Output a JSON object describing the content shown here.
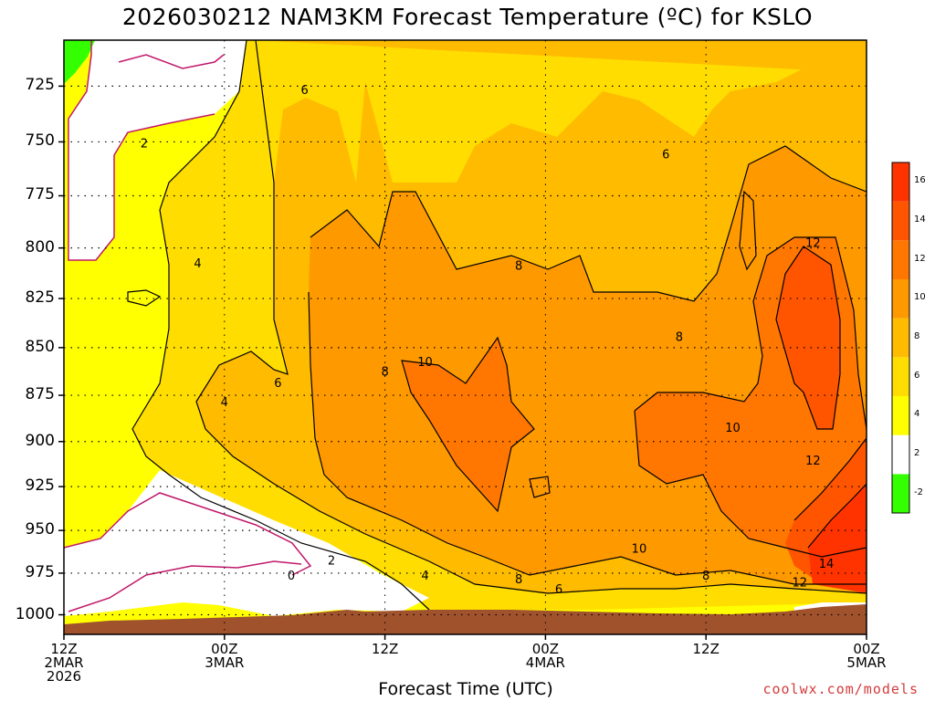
{
  "chart_data": {
    "type": "heatmap",
    "title": "2026030212 NAM3KM Forecast Temperature (ºC) for KSLO",
    "xlabel": "Forecast Time (UTC)",
    "ylabel": "",
    "y_scale": "pressure (inverted)",
    "ylim": [
      1012,
      705
    ],
    "y_ticks": [
      725,
      750,
      775,
      800,
      825,
      850,
      875,
      900,
      925,
      950,
      975,
      1000
    ],
    "x_ticks": [
      {
        "line1": "12Z",
        "line2": "2MAR",
        "line3": "2026"
      },
      {
        "line1": "00Z",
        "line2": "3MAR",
        "line3": ""
      },
      {
        "line1": "12Z",
        "line2": "",
        "line3": ""
      },
      {
        "line1": "00Z",
        "line2": "4MAR",
        "line3": ""
      },
      {
        "line1": "12Z",
        "line2": "",
        "line3": ""
      },
      {
        "line1": "00Z",
        "line2": "5MAR",
        "line3": ""
      }
    ],
    "x_range_hours": [
      0,
      60
    ],
    "grid": true,
    "colorbar": {
      "levels": [
        -2,
        2,
        4,
        6,
        8,
        10,
        12,
        14,
        16
      ],
      "colors": [
        "#33ff00",
        "#ffffff",
        "#ffff00",
        "#ffdd00",
        "#ffbb00",
        "#ff9900",
        "#ff7700",
        "#ff5500",
        "#ff3300"
      ]
    },
    "contour_labels": [
      {
        "text": "2",
        "hour": 6,
        "p": 751
      },
      {
        "text": "4",
        "hour": 10,
        "p": 808
      },
      {
        "text": "6",
        "hour": 18,
        "p": 727
      },
      {
        "text": "4",
        "hour": 12,
        "p": 879
      },
      {
        "text": "6",
        "hour": 16,
        "p": 869
      },
      {
        "text": "8",
        "hour": 24,
        "p": 863
      },
      {
        "text": "10",
        "hour": 27,
        "p": 858
      },
      {
        "text": "8",
        "hour": 34,
        "p": 809
      },
      {
        "text": "6",
        "hour": 45,
        "p": 756
      },
      {
        "text": "8",
        "hour": 46,
        "p": 845
      },
      {
        "text": "10",
        "hour": 50,
        "p": 893
      },
      {
        "text": "12",
        "hour": 56,
        "p": 798
      },
      {
        "text": "12",
        "hour": 56,
        "p": 911
      },
      {
        "text": "2",
        "hour": 20,
        "p": 968
      },
      {
        "text": "0",
        "hour": 17,
        "p": 977
      },
      {
        "text": "4",
        "hour": 27,
        "p": 977
      },
      {
        "text": "8",
        "hour": 34,
        "p": 979
      },
      {
        "text": "6",
        "hour": 37,
        "p": 985
      },
      {
        "text": "10",
        "hour": 43,
        "p": 961
      },
      {
        "text": "8",
        "hour": 48,
        "p": 977
      },
      {
        "text": "12",
        "hour": 55,
        "p": 981
      },
      {
        "text": "14",
        "hour": 57,
        "p": 970
      }
    ]
  },
  "credit": "coolwx.com/models"
}
